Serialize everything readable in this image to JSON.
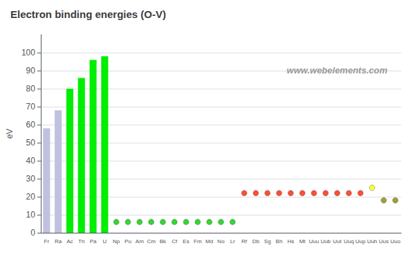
{
  "chart_data": {
    "type": "bar",
    "title": "Electron binding energies (O-V)",
    "ylabel": "eV",
    "categories": [
      "Fr",
      "Ra",
      "Ac",
      "Th",
      "Pa",
      "U",
      "Np",
      "Pu",
      "Am",
      "Cm",
      "Bk",
      "Cf",
      "Es",
      "Fm",
      "Md",
      "No",
      "Lr",
      "Rf",
      "Db",
      "Sg",
      "Bh",
      "Hs",
      "Mt",
      "Uuu",
      "Uub",
      "Uut",
      "Uuq",
      "Uup",
      "Uuh",
      "Uus",
      "Uuo"
    ],
    "series": [
      {
        "type": "bar",
        "color": "#c0c0e0",
        "values": [
          58,
          68,
          null,
          null,
          null,
          null,
          null,
          null,
          null,
          null,
          null,
          null,
          null,
          null,
          null,
          null,
          null,
          null,
          null,
          null,
          null,
          null,
          null,
          null,
          null,
          null,
          null,
          null,
          null,
          null,
          null
        ]
      },
      {
        "type": "bar",
        "color": "#00ee00",
        "values": [
          null,
          null,
          80,
          86,
          96,
          98,
          null,
          null,
          null,
          null,
          null,
          null,
          null,
          null,
          null,
          null,
          null,
          null,
          null,
          null,
          null,
          null,
          null,
          null,
          null,
          null,
          null,
          null,
          null,
          null,
          null
        ]
      },
      {
        "type": "scatter",
        "color": "#00cc00",
        "marker": "circle",
        "values": [
          null,
          null,
          null,
          null,
          null,
          null,
          6,
          6,
          6,
          6,
          6,
          6,
          6,
          6,
          6,
          6,
          6,
          null,
          null,
          null,
          null,
          null,
          null,
          null,
          null,
          null,
          null,
          null,
          null,
          null,
          null
        ]
      },
      {
        "type": "scatter",
        "color": "#ff2200",
        "marker": "circle",
        "values": [
          null,
          null,
          null,
          null,
          null,
          null,
          null,
          null,
          null,
          null,
          null,
          null,
          null,
          null,
          null,
          null,
          null,
          22,
          22,
          22,
          22,
          22,
          22,
          22,
          22,
          22,
          22,
          22,
          null,
          null,
          null
        ]
      },
      {
        "type": "scatter",
        "color": "#ffff00",
        "marker": "circle",
        "values": [
          null,
          null,
          null,
          null,
          null,
          null,
          null,
          null,
          null,
          null,
          null,
          null,
          null,
          null,
          null,
          null,
          null,
          null,
          null,
          null,
          null,
          null,
          null,
          null,
          null,
          null,
          null,
          null,
          25,
          null,
          null
        ]
      },
      {
        "type": "scatter",
        "color": "#888800",
        "marker": "circle",
        "values": [
          null,
          null,
          null,
          null,
          null,
          null,
          null,
          null,
          null,
          null,
          null,
          null,
          null,
          null,
          null,
          null,
          null,
          null,
          null,
          null,
          null,
          null,
          null,
          null,
          null,
          null,
          null,
          null,
          null,
          18,
          18
        ]
      }
    ],
    "ylim": [
      0,
      110
    ],
    "yticks": [
      0,
      10,
      20,
      30,
      40,
      50,
      60,
      70,
      80,
      90,
      100
    ],
    "grid": true,
    "annotations": [
      {
        "text": "www.webelements.com"
      }
    ]
  }
}
